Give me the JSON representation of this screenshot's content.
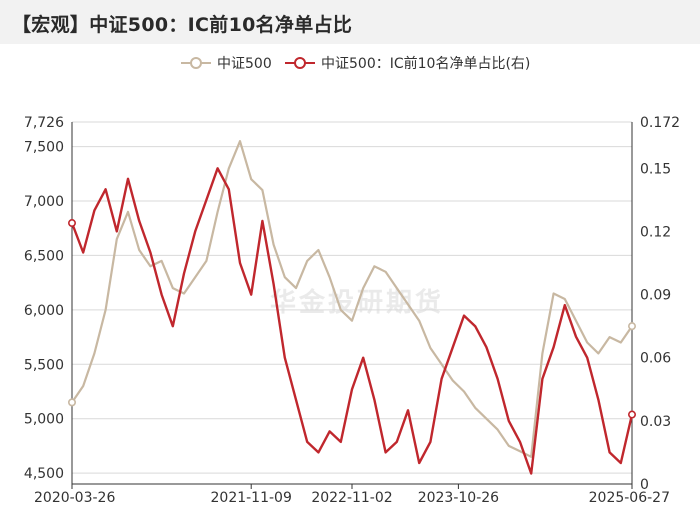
{
  "title": "【宏观】中证500：IC前10名净单占比",
  "watermark": "华金投研期货",
  "legend": [
    {
      "label": "中证500",
      "color": "#c8b8a2"
    },
    {
      "label": "中证500：IC前10名净单占比(右)",
      "color": "#c0272d"
    }
  ],
  "chart_data": {
    "type": "line",
    "x_tick_labels": [
      "2020-03-26",
      "2021-11-09",
      "2022-11-02",
      "2023-10-26",
      "2025-06-27"
    ],
    "y_left": {
      "min": 4400,
      "max": 7726,
      "ticks": [
        4500,
        5000,
        5500,
        6000,
        6500,
        7000,
        7500,
        7726
      ],
      "tick_labels": [
        "4,500",
        "5,000",
        "5,500",
        "6,000",
        "6,500",
        "7,000",
        "7,500",
        "7,726"
      ]
    },
    "y_right": {
      "min": 0,
      "max": 0.172,
      "ticks": [
        0,
        0.03,
        0.06,
        0.09,
        0.12,
        0.15,
        0.172
      ],
      "tick_labels": [
        "0",
        "0.03",
        "0.06",
        "0.09",
        "0.12",
        "0.15",
        "0.172"
      ]
    },
    "grid": "horizontal",
    "series": [
      {
        "name": "中证500",
        "axis": "left",
        "color": "#c8b8a2",
        "t": [
          0,
          0.02,
          0.04,
          0.06,
          0.08,
          0.1,
          0.12,
          0.14,
          0.16,
          0.18,
          0.2,
          0.22,
          0.24,
          0.26,
          0.28,
          0.3,
          0.32,
          0.34,
          0.36,
          0.38,
          0.4,
          0.42,
          0.44,
          0.46,
          0.48,
          0.5,
          0.52,
          0.54,
          0.56,
          0.58,
          0.6,
          0.62,
          0.64,
          0.66,
          0.68,
          0.7,
          0.72,
          0.74,
          0.76,
          0.78,
          0.8,
          0.82,
          0.84,
          0.86,
          0.88,
          0.9,
          0.92,
          0.94,
          0.96,
          0.98,
          1.0
        ],
        "values": [
          5150,
          5300,
          5600,
          6000,
          6650,
          6900,
          6550,
          6400,
          6450,
          6200,
          6150,
          6300,
          6450,
          6900,
          7300,
          7550,
          7200,
          7100,
          6600,
          6300,
          6200,
          6450,
          6550,
          6300,
          6000,
          5900,
          6200,
          6400,
          6350,
          6200,
          6050,
          5900,
          5650,
          5500,
          5350,
          5250,
          5100,
          5000,
          4900,
          4750,
          4700,
          4650,
          5600,
          6150,
          6100,
          5900,
          5700,
          5600,
          5750,
          5700,
          5850
        ]
      },
      {
        "name": "中证500：IC前10名净单占比(右)",
        "axis": "right",
        "color": "#c0272d",
        "t": [
          0,
          0.02,
          0.04,
          0.06,
          0.08,
          0.1,
          0.12,
          0.14,
          0.16,
          0.18,
          0.2,
          0.22,
          0.24,
          0.26,
          0.28,
          0.3,
          0.32,
          0.34,
          0.36,
          0.38,
          0.4,
          0.42,
          0.44,
          0.46,
          0.48,
          0.5,
          0.52,
          0.54,
          0.56,
          0.58,
          0.6,
          0.62,
          0.64,
          0.66,
          0.68,
          0.7,
          0.72,
          0.74,
          0.76,
          0.78,
          0.8,
          0.82,
          0.84,
          0.86,
          0.88,
          0.9,
          0.92,
          0.94,
          0.96,
          0.98,
          1.0
        ],
        "values": [
          0.124,
          0.11,
          0.13,
          0.14,
          0.12,
          0.145,
          0.125,
          0.11,
          0.09,
          0.075,
          0.1,
          0.12,
          0.135,
          0.15,
          0.14,
          0.105,
          0.09,
          0.125,
          0.095,
          0.06,
          0.04,
          0.02,
          0.015,
          0.025,
          0.02,
          0.045,
          0.06,
          0.04,
          0.015,
          0.02,
          0.035,
          0.01,
          0.02,
          0.05,
          0.065,
          0.08,
          0.075,
          0.065,
          0.05,
          0.03,
          0.02,
          0.005,
          0.05,
          0.065,
          0.085,
          0.07,
          0.06,
          0.04,
          0.015,
          0.01,
          0.033
        ]
      }
    ]
  }
}
